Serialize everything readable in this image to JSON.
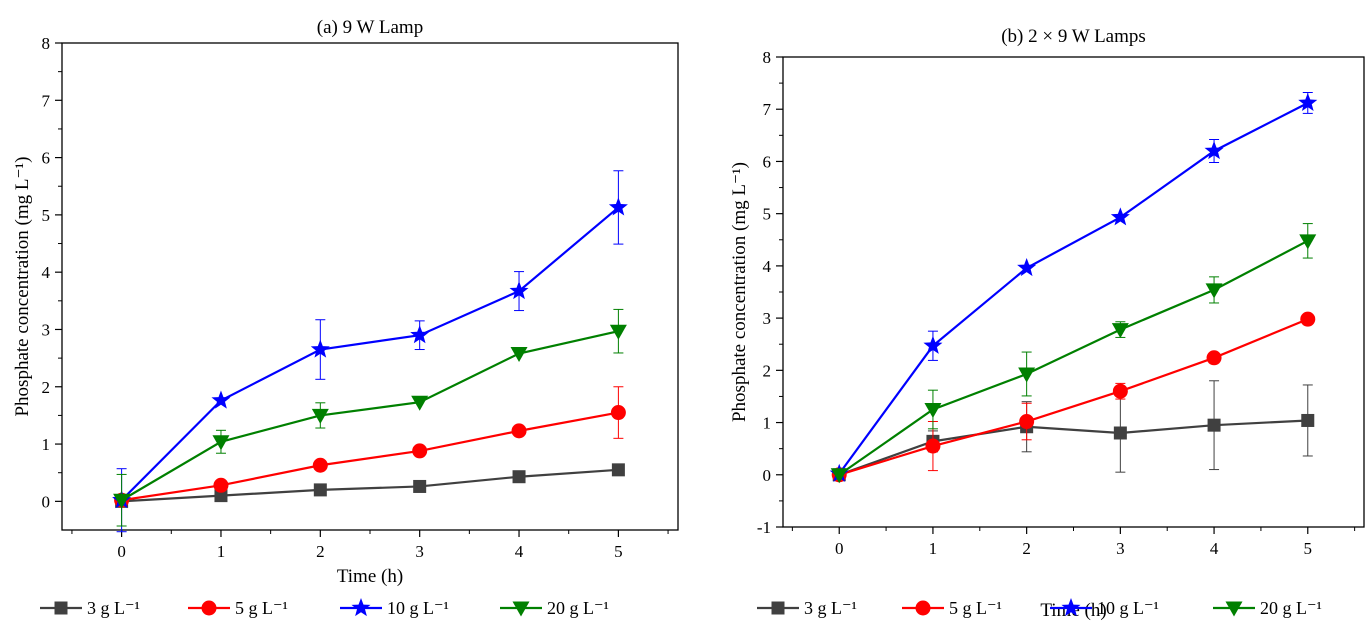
{
  "chart_data": [
    {
      "type": "line",
      "title": "(a) 9 W Lamp",
      "xlabel": "Time (h)",
      "ylabel": "Phosphate concentration (mg L⁻¹)",
      "x": [
        0,
        1,
        2,
        3,
        4,
        5
      ],
      "xticks": [
        "0",
        "1",
        "2",
        "3",
        "4",
        "5"
      ],
      "yticks": [
        "0",
        "1",
        "2",
        "3",
        "4",
        "5",
        "6",
        "7",
        "8"
      ],
      "xlim": [
        -0.6,
        5.6
      ],
      "ylim": [
        -0.5,
        8
      ],
      "grid": false,
      "legend_position": "bottom",
      "series": [
        {
          "name": "3 g L⁻¹",
          "color": "#404040",
          "marker": "square",
          "values": [
            0,
            0.1,
            0.2,
            0.26,
            0.43,
            0.55
          ],
          "errors": [
            0,
            0,
            0,
            0,
            0,
            0
          ]
        },
        {
          "name": "5 g L⁻¹",
          "color": "#ff0000",
          "marker": "circle",
          "values": [
            0.02,
            0.28,
            0.63,
            0.88,
            1.23,
            1.55
          ],
          "errors": [
            0,
            0,
            0,
            0,
            0,
            0.45
          ]
        },
        {
          "name": "10 g L⁻¹",
          "color": "#0000ff",
          "marker": "star",
          "values": [
            0.02,
            1.76,
            2.65,
            2.9,
            3.67,
            5.13
          ],
          "errors": [
            0.55,
            0,
            0.52,
            0.25,
            0.34,
            0.64
          ]
        },
        {
          "name": "20 g L⁻¹",
          "color": "#008000",
          "marker": "triangle-down",
          "values": [
            0.02,
            1.04,
            1.5,
            1.73,
            2.58,
            2.97
          ],
          "errors": [
            0.45,
            0.2,
            0.22,
            0,
            0,
            0.38
          ]
        }
      ]
    },
    {
      "type": "line",
      "title": "(b) 2 × 9 W Lamps",
      "xlabel": "Time (h)",
      "ylabel": "Phosphate concentration (mg L⁻¹)",
      "x": [
        0,
        1,
        2,
        3,
        4,
        5
      ],
      "xticks": [
        "0",
        "1",
        "2",
        "3",
        "4",
        "5"
      ],
      "yticks": [
        "-1",
        "0",
        "1",
        "2",
        "3",
        "4",
        "5",
        "6",
        "7",
        "8"
      ],
      "xlim": [
        -0.6,
        5.6
      ],
      "ylim": [
        -1,
        8
      ],
      "grid": false,
      "legend_position": "bottom",
      "series": [
        {
          "name": "3 g L⁻¹",
          "color": "#404040",
          "marker": "square",
          "values": [
            0,
            0.64,
            0.92,
            0.8,
            0.95,
            1.04
          ],
          "errors": [
            0,
            0.2,
            0.48,
            0.75,
            0.85,
            0.68
          ]
        },
        {
          "name": "5 g L⁻¹",
          "color": "#ff0000",
          "marker": "circle",
          "values": [
            0,
            0.55,
            1.02,
            1.6,
            2.24,
            2.98
          ],
          "errors": [
            0,
            0.47,
            0.35,
            0.15,
            0,
            0
          ]
        },
        {
          "name": "10 g L⁻¹",
          "color": "#0000ff",
          "marker": "star",
          "values": [
            0.02,
            2.47,
            3.96,
            4.93,
            6.2,
            7.12
          ],
          "errors": [
            0,
            0.28,
            0,
            0,
            0.22,
            0.2
          ]
        },
        {
          "name": "20 g L⁻¹",
          "color": "#008000",
          "marker": "triangle-down",
          "values": [
            0,
            1.25,
            1.93,
            2.78,
            3.54,
            4.48
          ],
          "errors": [
            0,
            0.37,
            0.42,
            0.15,
            0.25,
            0.33
          ]
        }
      ]
    }
  ]
}
